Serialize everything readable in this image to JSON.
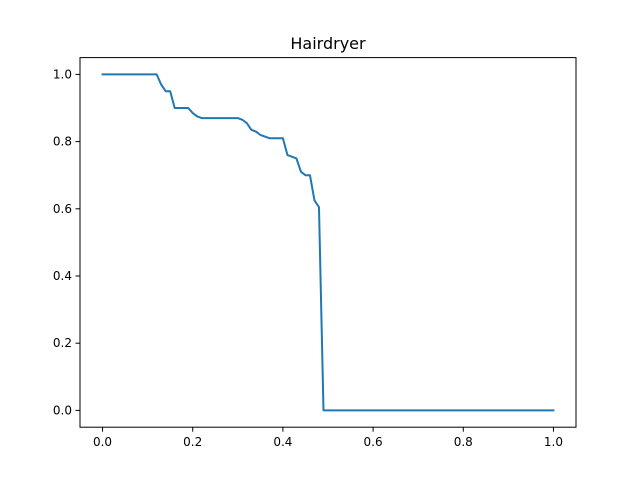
{
  "chart_data": {
    "type": "line",
    "title": "Hairdryer",
    "xlabel": "",
    "ylabel": "",
    "xlim": [
      -0.05,
      1.05
    ],
    "ylim": [
      -0.05,
      1.05
    ],
    "grid": false,
    "xticks": [
      0.0,
      0.2,
      0.4,
      0.6,
      0.8,
      1.0
    ],
    "xtick_labels": [
      "0.0",
      "0.2",
      "0.4",
      "0.6",
      "0.8",
      "1.0"
    ],
    "yticks": [
      0.0,
      0.2,
      0.4,
      0.6,
      0.8,
      1.0
    ],
    "ytick_labels": [
      "0.0",
      "0.2",
      "0.4",
      "0.6",
      "0.8",
      "1.0"
    ],
    "series": [
      {
        "color": "#1f77b4",
        "x": [
          0.0,
          0.12,
          0.13,
          0.14,
          0.15,
          0.16,
          0.17,
          0.19,
          0.2,
          0.21,
          0.22,
          0.24,
          0.26,
          0.28,
          0.3,
          0.31,
          0.32,
          0.33,
          0.34,
          0.35,
          0.36,
          0.37,
          0.38,
          0.39,
          0.4,
          0.41,
          0.42,
          0.43,
          0.44,
          0.45,
          0.46,
          0.47,
          0.48,
          0.49,
          0.5,
          0.6,
          0.8,
          1.0
        ],
        "y": [
          1.0,
          1.0,
          0.97,
          0.95,
          0.95,
          0.9,
          0.9,
          0.9,
          0.885,
          0.875,
          0.87,
          0.87,
          0.87,
          0.87,
          0.87,
          0.865,
          0.855,
          0.835,
          0.83,
          0.82,
          0.815,
          0.81,
          0.81,
          0.81,
          0.81,
          0.76,
          0.755,
          0.75,
          0.71,
          0.7,
          0.7,
          0.625,
          0.605,
          0.0,
          0.0,
          0.0,
          0.0,
          0.0
        ]
      }
    ]
  }
}
